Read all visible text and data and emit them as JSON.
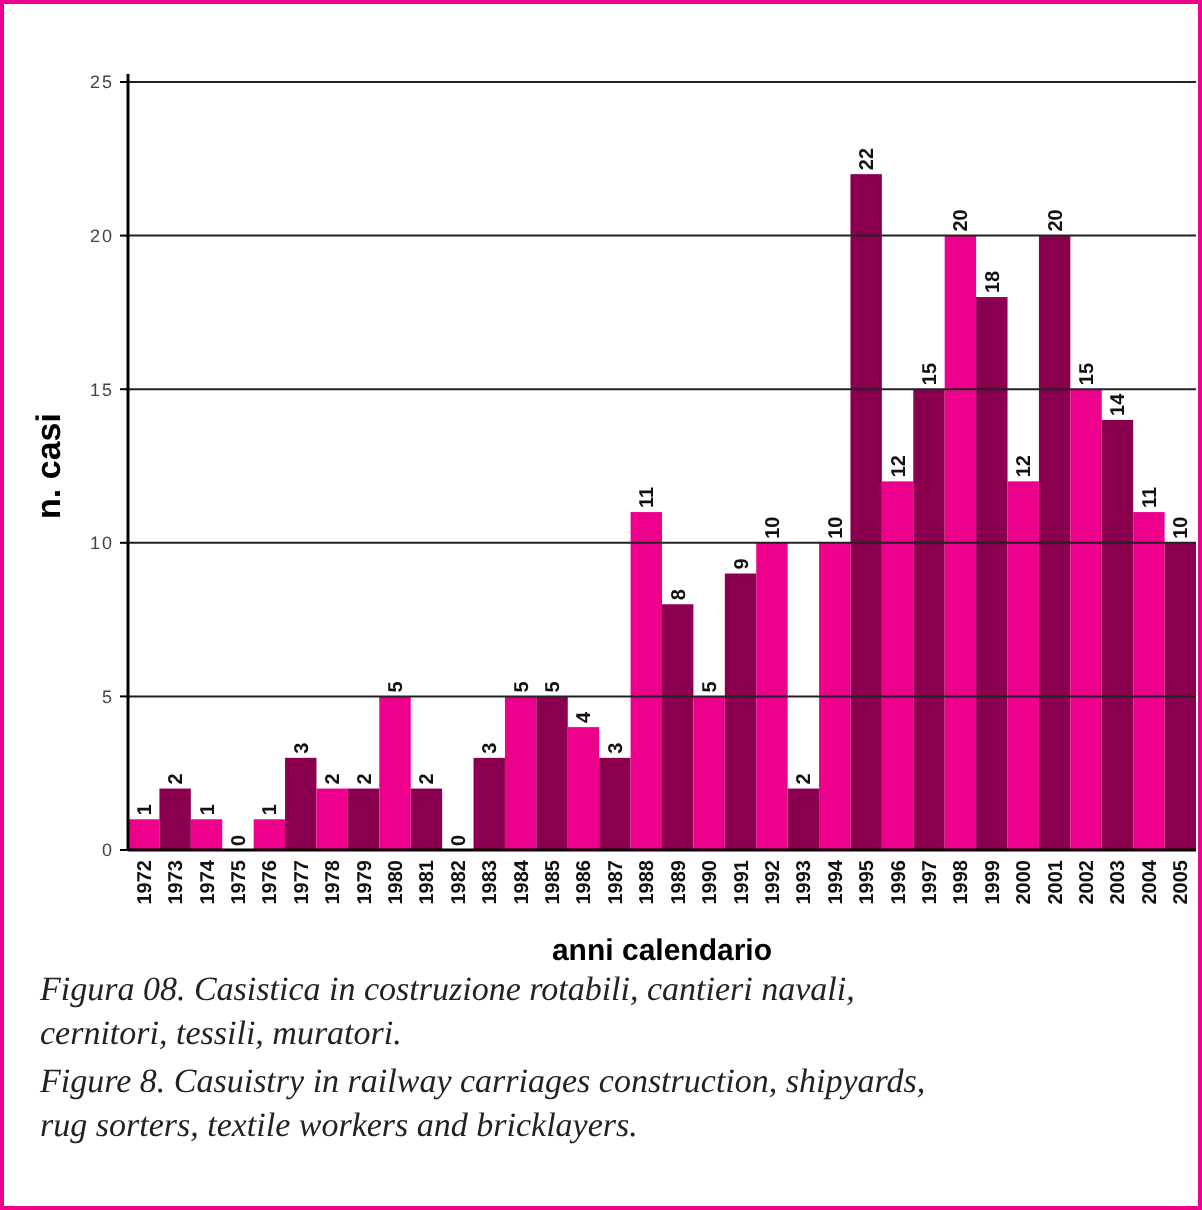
{
  "chart_data": {
    "type": "bar",
    "xlabel": "anni calendario",
    "ylabel": "n. casi",
    "categories": [
      "1972",
      "1973",
      "1974",
      "1975",
      "1976",
      "1977",
      "1978",
      "1979",
      "1980",
      "1981",
      "1982",
      "1983",
      "1984",
      "1985",
      "1986",
      "1987",
      "1988",
      "1989",
      "1990",
      "1991",
      "1992",
      "1993",
      "1994",
      "1995",
      "1996",
      "1997",
      "1998",
      "1999",
      "2000",
      "2001",
      "2002",
      "2003",
      "2004",
      "2005"
    ],
    "values": [
      1,
      2,
      1,
      0,
      1,
      3,
      2,
      2,
      5,
      2,
      0,
      3,
      5,
      5,
      4,
      3,
      11,
      8,
      5,
      9,
      10,
      2,
      10,
      22,
      12,
      15,
      20,
      18,
      12,
      20,
      15,
      14,
      11,
      10
    ],
    "colors": [
      "#ec008c",
      "#8a004f",
      "#ec008c",
      "#8a004f",
      "#ec008c",
      "#8a004f",
      "#ec008c",
      "#8a004f",
      "#ec008c",
      "#8a004f",
      "#ec008c",
      "#8a004f",
      "#ec008c",
      "#8a004f",
      "#ec008c",
      "#8a004f",
      "#ec008c",
      "#8a004f",
      "#ec008c",
      "#8a004f",
      "#ec008c",
      "#8a004f",
      "#ec008c",
      "#8a004f",
      "#ec008c",
      "#8a004f",
      "#ec008c",
      "#8a004f",
      "#ec008c",
      "#8a004f",
      "#ec008c",
      "#8a004f",
      "#ec008c",
      "#8a004f"
    ],
    "ylim": [
      0,
      25
    ],
    "yticks": [
      0,
      5,
      10,
      15,
      20,
      25
    ],
    "grid": "y",
    "data_labels": true,
    "annotations": [
      "Figura 08. Casistica in costruzione rotabili, cantieri navali, cernitori, tessili, muratori.",
      "Figure 8. Casuistry in railway carriages construction, shipyards, rug sorters, textile workers and bricklayers."
    ]
  }
}
